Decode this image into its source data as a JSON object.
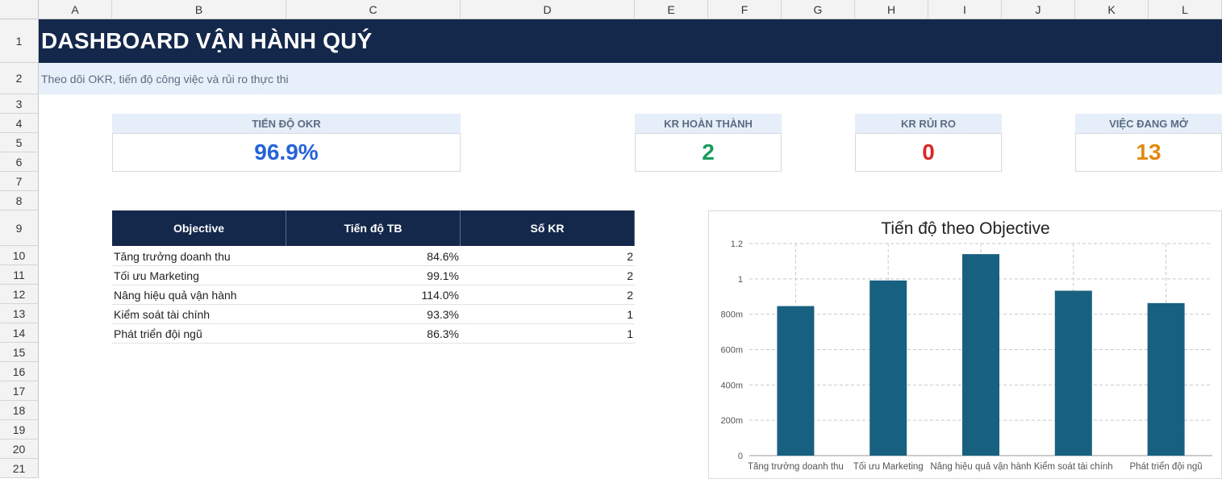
{
  "grid": {
    "columns": [
      "A",
      "B",
      "C",
      "D",
      "E",
      "F",
      "G",
      "H",
      "I",
      "J",
      "K",
      "L"
    ],
    "rows": [
      "1",
      "2",
      "3",
      "4",
      "5",
      "6",
      "7",
      "8",
      "9",
      "10",
      "11",
      "12",
      "13",
      "14",
      "15",
      "16",
      "17",
      "18",
      "19",
      "20",
      "21"
    ]
  },
  "header": {
    "title": "DASHBOARD VẬN HÀNH QUÝ",
    "subtitle": "Theo dõi OKR, tiến độ công việc và rủi ro thực thi"
  },
  "kpis": [
    {
      "label": "TIẾN ĐỘ OKR",
      "value": "96.9%",
      "color": "#2563d9"
    },
    {
      "label": "KR HOÀN THÀNH",
      "value": "2",
      "color": "#1a9a5b"
    },
    {
      "label": "KR RỦI RO",
      "value": "0",
      "color": "#dc2626"
    },
    {
      "label": "VIỆC ĐANG MỞ",
      "value": "13",
      "color": "#e08a14"
    }
  ],
  "table": {
    "headers": [
      "Objective",
      "Tiến độ TB",
      "Số KR"
    ],
    "rows": [
      [
        "Tăng trưởng doanh thu",
        "84.6%",
        "2"
      ],
      [
        "Tối ưu Marketing",
        "99.1%",
        "2"
      ],
      [
        "Nâng hiệu quả vận hành",
        "114.0%",
        "2"
      ],
      [
        "Kiểm soát tài chính",
        "93.3%",
        "1"
      ],
      [
        "Phát triển đội ngũ",
        "86.3%",
        "1"
      ]
    ]
  },
  "chart_data": {
    "type": "bar",
    "title": "Tiến độ theo Objective",
    "categories": [
      "Tăng trưởng doanh thu",
      "Tối ưu Marketing",
      "Nâng hiệu quả vận hành",
      "Kiểm soát tài chính",
      "Phát triển đội ngũ"
    ],
    "values": [
      0.846,
      0.991,
      1.14,
      0.933,
      0.863
    ],
    "ylim": [
      0,
      1.2
    ],
    "yticks": [
      0,
      0.2,
      0.4,
      0.6,
      0.8,
      1,
      1.2
    ],
    "ytick_labels": [
      "0",
      "200m",
      "400m",
      "600m",
      "800m",
      "1",
      "1.2"
    ],
    "xlabel": "",
    "ylabel": "",
    "grid": true,
    "bar_color": "#17607f"
  }
}
